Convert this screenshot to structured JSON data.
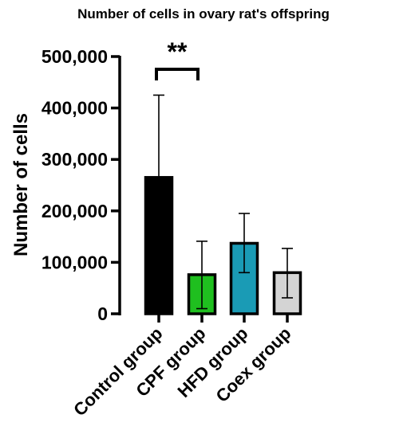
{
  "chart_data": {
    "type": "bar",
    "title": "Number of cells in ovary rat's offspring",
    "xlabel": "",
    "ylabel": "Number of cells",
    "ylim": [
      0,
      500000
    ],
    "yticks": [
      0,
      100000,
      200000,
      300000,
      400000,
      500000
    ],
    "ytick_labels": [
      "0",
      "100,000",
      "200,000",
      "300,000",
      "400,000",
      "500,000"
    ],
    "categories": [
      "Control group",
      "CPF group",
      "HFD group",
      "Coex group"
    ],
    "values": [
      265000,
      76000,
      137000,
      80000
    ],
    "error_upper": [
      425000,
      141000,
      195000,
      127000
    ],
    "error_lower": [
      null,
      10000,
      80000,
      31000
    ],
    "colors": [
      "#000000",
      "#1fbf1f",
      "#1a9bb5",
      "#d4d4d4"
    ],
    "annotations": [
      {
        "text": "**",
        "between": [
          "Control group",
          "CPF group"
        ]
      }
    ]
  }
}
